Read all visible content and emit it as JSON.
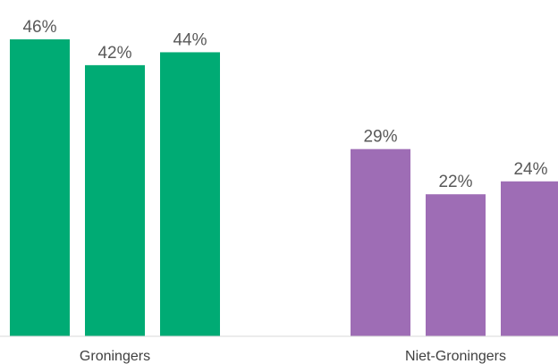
{
  "chart_data": {
    "type": "bar",
    "title": "",
    "xlabel": "",
    "ylabel": "",
    "ylim": [
      0,
      46
    ],
    "grid": false,
    "legend": "none",
    "value_suffix": "%",
    "groups": [
      {
        "category": "Groningers",
        "color": "#00AB74",
        "values": [
          46,
          42,
          44
        ],
        "labels": [
          "46%",
          "42%",
          "44%"
        ]
      },
      {
        "category": "Niet-Groningers",
        "color": "#9E6DB5",
        "values": [
          29,
          22,
          24
        ],
        "labels": [
          "29%",
          "22%",
          "24%"
        ]
      }
    ],
    "axis_color": "#D9D9D9",
    "label_color": "#595959"
  }
}
